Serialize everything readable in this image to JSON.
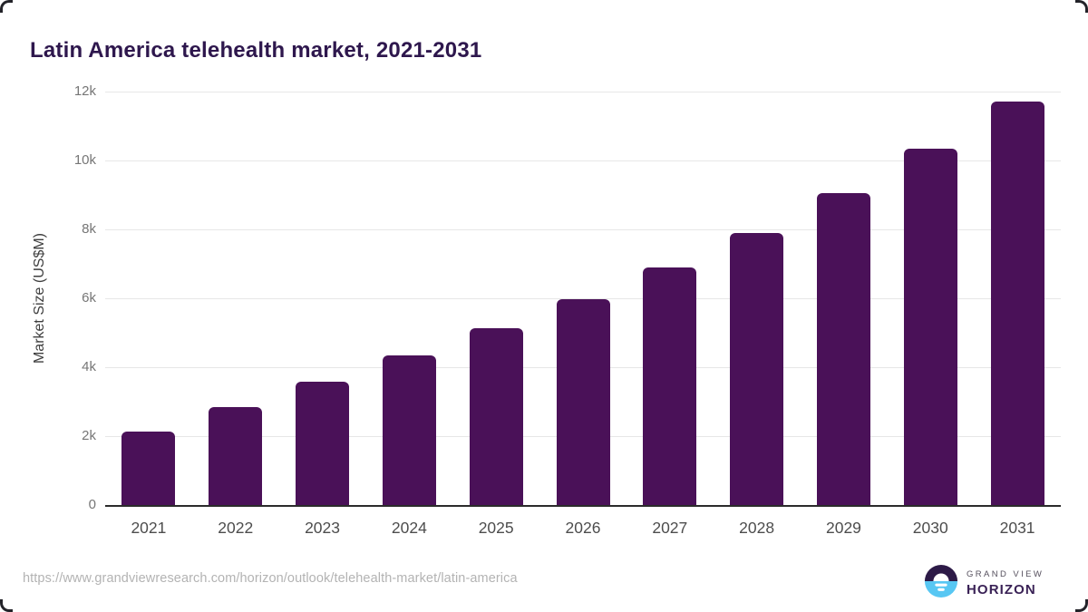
{
  "header": {
    "title": "Latin America telehealth market, 2021-2031",
    "title_color": "#2e174d"
  },
  "chart_data": {
    "type": "bar",
    "title": "Latin America telehealth market, 2021-2031",
    "categories": [
      "2021",
      "2022",
      "2023",
      "2024",
      "2025",
      "2026",
      "2027",
      "2028",
      "2029",
      "2030",
      "2031"
    ],
    "values": [
      2140,
      2850,
      3580,
      4340,
      5120,
      5970,
      6900,
      7900,
      9050,
      10330,
      11720
    ],
    "xlabel": "",
    "ylabel": "Market Size (US$M)",
    "ylim": [
      0,
      12000
    ],
    "yticks": {
      "values": [
        0,
        2000,
        4000,
        6000,
        8000,
        10000,
        12000
      ],
      "labels": [
        "0",
        "2k",
        "4k",
        "6k",
        "8k",
        "10k",
        "12k"
      ]
    },
    "grid": true,
    "legend": false,
    "bar_color": "#4a1158",
    "gridline_color": "#e7e7e7",
    "axis_line_color": "#2b2b2b"
  },
  "footer": {
    "source_url": "https://www.grandviewresearch.com/horizon/outlook/telehealth-market/latin-america",
    "logo": {
      "line1": "GRAND VIEW",
      "line2": "HORIZON",
      "icon": "horizon-sun-icon",
      "icon_colors": {
        "top": "#2d1a47",
        "bottom": "#58c7f3",
        "accent": "#ffffff"
      }
    }
  }
}
